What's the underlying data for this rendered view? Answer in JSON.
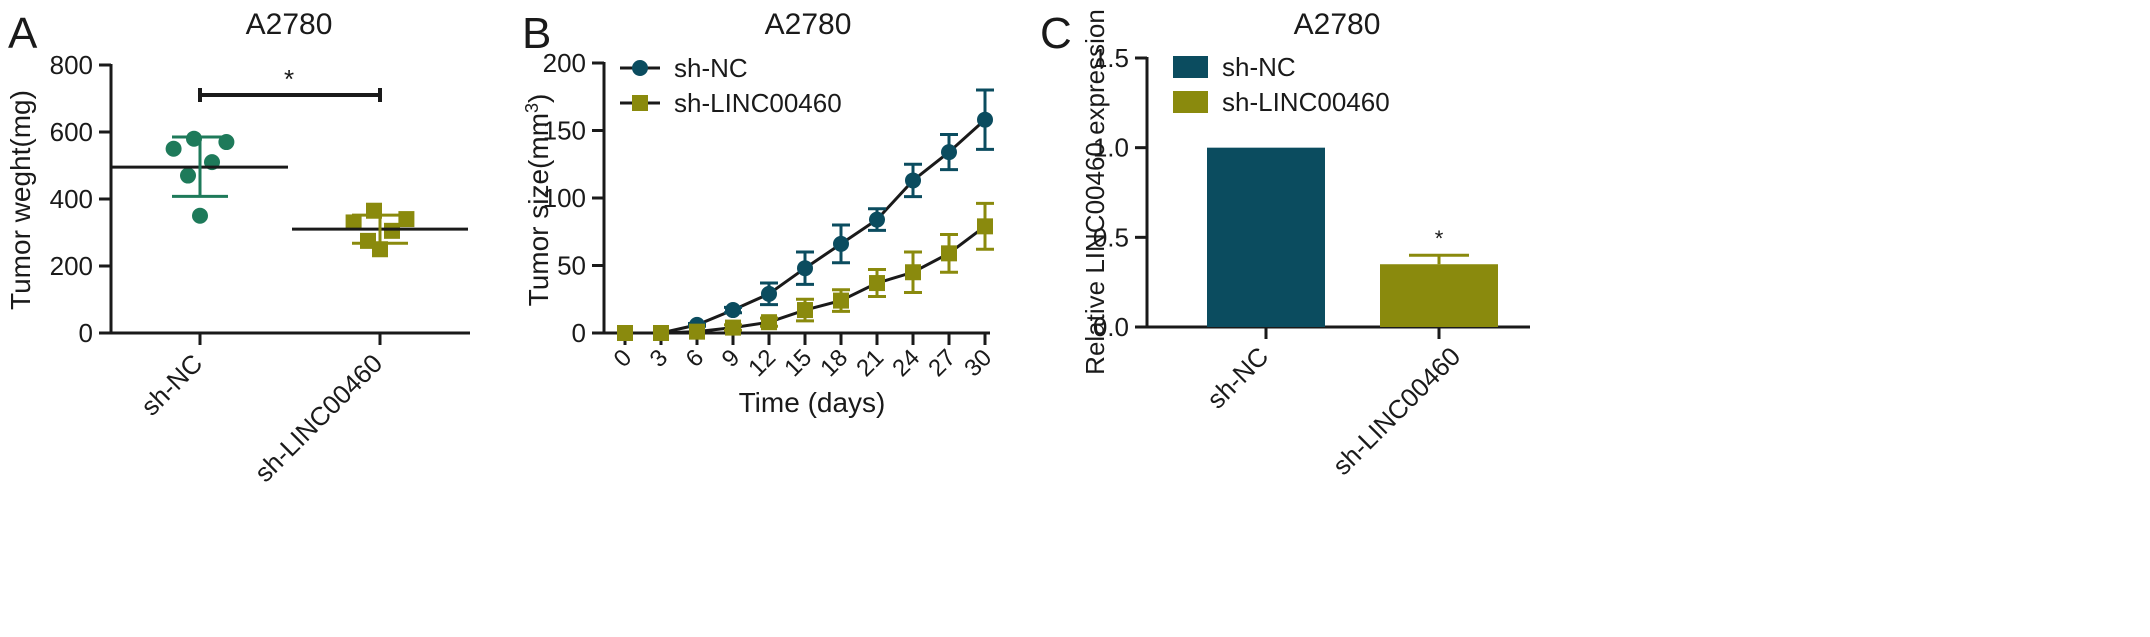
{
  "colors": {
    "green": "#1E7A5A",
    "teal": "#0B4C5F",
    "olive": "#8A8A0D",
    "axis": "#1a1a1a"
  },
  "panels": [
    {
      "letter": "A",
      "title": "A2780"
    },
    {
      "letter": "B",
      "title": "A2780"
    },
    {
      "letter": "C",
      "title": "A2780"
    }
  ],
  "chart_data": [
    {
      "type": "scatter",
      "title": "A2780",
      "ylabel": "Tumor weght(mg)",
      "xlabel": "",
      "categories": [
        "sh-NC",
        "sh-LINC00460"
      ],
      "ylim": [
        0,
        800
      ],
      "yticks": [
        "0",
        "200",
        "400",
        "600",
        "800"
      ],
      "series": [
        {
          "name": "sh-NC",
          "points": [
            350,
            470,
            510,
            550,
            570,
            580
          ],
          "mean": 495,
          "error_low": 408,
          "error_high": 585,
          "marker": "circle",
          "color": "#1E7A5A"
        },
        {
          "name": "sh-LINC00460",
          "points": [
            250,
            275,
            305,
            330,
            340,
            365
          ],
          "mean": 310,
          "error_low": 268,
          "error_high": 352,
          "marker": "square",
          "color": "#8A8A0D"
        }
      ],
      "annotation": "*"
    },
    {
      "type": "line",
      "title": "A2780",
      "xlabel": "Time (days)",
      "ylabel": "Tumor size(mm",
      "ylabel_sup": "3",
      "ylabel_end": ")",
      "x": [
        0,
        3,
        6,
        9,
        12,
        15,
        18,
        21,
        24,
        27,
        30
      ],
      "ylim": [
        0,
        200
      ],
      "yticks": [
        "0",
        "50",
        "100",
        "150",
        "200"
      ],
      "legend": [
        "sh-NC",
        "sh-LINC00460"
      ],
      "legend_position": "top-left",
      "series": [
        {
          "name": "sh-NC",
          "marker": "circle",
          "color": "#0B4C5F",
          "values": [
            0,
            0,
            6,
            17,
            29,
            48,
            66,
            84,
            113,
            134,
            158
          ],
          "errors": [
            0,
            0,
            1,
            2,
            8,
            12,
            14,
            8,
            12,
            13,
            22
          ]
        },
        {
          "name": "sh-LINC00460",
          "marker": "square",
          "color": "#8A8A0D",
          "values": [
            0,
            0,
            1,
            4,
            8,
            17,
            24,
            37,
            45,
            59,
            79
          ],
          "errors": [
            0,
            0,
            0,
            2,
            3,
            8,
            8,
            10,
            15,
            14,
            17
          ]
        }
      ]
    },
    {
      "type": "bar",
      "title": "A2780",
      "ylabel": "Relative LINC00460 expression",
      "xlabel": "",
      "categories": [
        "sh-NC",
        "sh-LINC00460"
      ],
      "values": [
        1.0,
        0.35
      ],
      "errors": [
        0,
        0.05
      ],
      "ylim": [
        0,
        1.5
      ],
      "yticks": [
        "0.0",
        "0.5",
        "1.0",
        "1.5"
      ],
      "legend": [
        "sh-NC",
        "sh-LINC00460"
      ],
      "legend_position": "top-left",
      "colors": [
        "#0B4C5F",
        "#8A8A0D"
      ],
      "annotation": "*"
    }
  ]
}
